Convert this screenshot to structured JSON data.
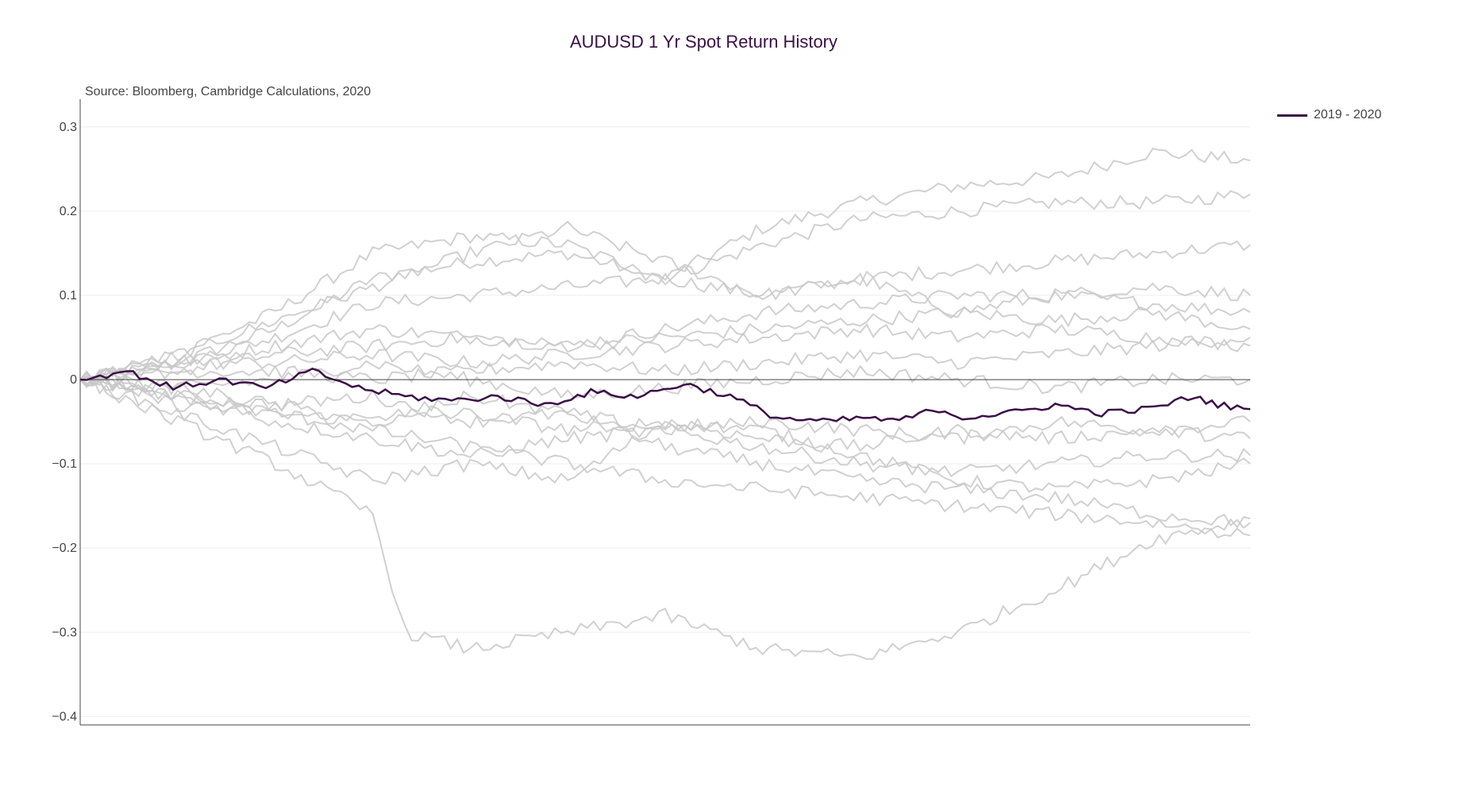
{
  "chart_data": {
    "type": "line",
    "title": "AUDUSD 1 Yr Spot Return History",
    "subtitle": "Source: Bloomberg, Cambridge Calculations, 2020",
    "xlabel": "",
    "ylabel": "",
    "ylim": [
      -0.41,
      0.33
    ],
    "yticks": [
      {
        "value": 0.3,
        "label": "0.3"
      },
      {
        "value": 0.2,
        "label": "0.2"
      },
      {
        "value": 0.1,
        "label": "0.1"
      },
      {
        "value": 0,
        "label": "0"
      },
      {
        "value": -0.1,
        "label": "−0.1"
      },
      {
        "value": -0.2,
        "label": "−0.2"
      },
      {
        "value": -0.3,
        "label": "−0.3"
      },
      {
        "value": -0.4,
        "label": "−0.4"
      }
    ],
    "x_start": 0,
    "x_end": 252,
    "grid": true,
    "legend_position": "top-right",
    "highlight_color": "#3b0f46",
    "history_color": "#c8c8c8",
    "series": [
      {
        "name": "2019 - 2020",
        "highlight": true,
        "x": [
          0,
          10,
          20,
          30,
          40,
          50,
          60,
          70,
          80,
          90,
          100,
          110,
          120,
          130,
          140,
          150,
          160,
          170,
          175,
          185,
          190,
          200,
          210,
          220,
          230,
          240,
          245,
          252
        ],
        "values": [
          0,
          0.01,
          -0.01,
          0.0,
          -0.01,
          0.01,
          -0.01,
          -0.02,
          -0.025,
          -0.02,
          -0.03,
          -0.015,
          -0.02,
          -0.005,
          -0.02,
          -0.045,
          -0.05,
          -0.045,
          -0.05,
          -0.035,
          -0.045,
          -0.04,
          -0.03,
          -0.04,
          -0.035,
          -0.02,
          -0.03,
          -0.035
        ]
      },
      {
        "name": "",
        "x": [
          0,
          21,
          42,
          63,
          84,
          105,
          126,
          147,
          168,
          189,
          210,
          231,
          252
        ],
        "values": [
          0,
          0.02,
          0.06,
          0.12,
          0.14,
          0.15,
          0.12,
          0.18,
          0.21,
          0.23,
          0.24,
          0.27,
          0.26
        ]
      },
      {
        "name": "",
        "x": [
          0,
          21,
          42,
          63,
          84,
          105,
          126,
          147,
          168,
          189,
          210,
          231,
          252
        ],
        "values": [
          0,
          0.03,
          0.08,
          0.15,
          0.17,
          0.16,
          0.12,
          0.16,
          0.19,
          0.2,
          0.21,
          0.21,
          0.22
        ]
      },
      {
        "name": "",
        "x": [
          0,
          21,
          42,
          63,
          84,
          105,
          126,
          147,
          168,
          189,
          210,
          231,
          252
        ],
        "values": [
          0,
          0.02,
          0.05,
          0.09,
          0.1,
          0.11,
          0.12,
          0.1,
          0.12,
          0.13,
          0.14,
          0.15,
          0.16
        ]
      },
      {
        "name": "",
        "x": [
          0,
          21,
          42,
          63,
          84,
          105,
          126,
          147,
          168,
          189,
          210,
          231,
          252
        ],
        "values": [
          0,
          0.03,
          0.07,
          0.11,
          0.15,
          0.18,
          0.14,
          0.1,
          0.12,
          0.08,
          0.1,
          0.09,
          0.08
        ]
      },
      {
        "name": "",
        "x": [
          0,
          21,
          42,
          63,
          84,
          105,
          126,
          147,
          168,
          189,
          210,
          231,
          252
        ],
        "values": [
          0,
          0.02,
          0.04,
          0.06,
          0.05,
          0.04,
          0.06,
          0.08,
          0.09,
          0.1,
          0.1,
          0.11,
          0.1
        ]
      },
      {
        "name": "",
        "x": [
          0,
          21,
          42,
          63,
          84,
          105,
          126,
          147,
          168,
          189,
          210,
          231,
          252
        ],
        "values": [
          0,
          0.01,
          0.03,
          0.04,
          0.05,
          0.04,
          0.05,
          0.06,
          0.07,
          0.08,
          0.07,
          0.08,
          0.06
        ]
      },
      {
        "name": "",
        "x": [
          0,
          21,
          42,
          63,
          84,
          105,
          126,
          147,
          168,
          189,
          210,
          231,
          252
        ],
        "values": [
          0,
          0.02,
          0.02,
          0.03,
          0.02,
          0.03,
          0.04,
          0.05,
          0.06,
          0.05,
          0.06,
          0.05,
          0.04
        ]
      },
      {
        "name": "",
        "x": [
          0,
          21,
          42,
          63,
          84,
          105,
          126,
          147,
          168,
          189,
          210,
          231,
          252
        ],
        "values": [
          0,
          0.01,
          0.01,
          0.0,
          0.01,
          0.02,
          0.01,
          0.02,
          0.03,
          0.02,
          0.03,
          0.04,
          0.05
        ]
      },
      {
        "name": "",
        "x": [
          0,
          21,
          42,
          63,
          84,
          105,
          126,
          147,
          168,
          189,
          210,
          231,
          252
        ],
        "values": [
          0,
          -0.01,
          0.0,
          0.02,
          0.0,
          -0.02,
          -0.01,
          0.0,
          0.01,
          0.0,
          -0.01,
          0.0,
          0.0
        ]
      },
      {
        "name": "",
        "x": [
          0,
          21,
          42,
          63,
          84,
          105,
          126,
          147,
          168,
          189,
          210,
          231,
          252
        ],
        "values": [
          0,
          -0.02,
          -0.03,
          -0.02,
          -0.05,
          -0.04,
          -0.06,
          -0.05,
          -0.06,
          -0.07,
          -0.05,
          -0.06,
          -0.05
        ]
      },
      {
        "name": "",
        "x": [
          0,
          21,
          42,
          63,
          84,
          105,
          126,
          147,
          168,
          189,
          210,
          231,
          252
        ],
        "values": [
          0,
          -0.03,
          -0.04,
          -0.05,
          -0.04,
          -0.06,
          -0.05,
          -0.07,
          -0.08,
          -0.06,
          -0.07,
          -0.06,
          -0.07
        ]
      },
      {
        "name": "",
        "x": [
          0,
          21,
          42,
          63,
          84,
          105,
          126,
          147,
          168,
          189,
          210,
          231,
          252
        ],
        "values": [
          0,
          -0.02,
          -0.05,
          -0.07,
          -0.09,
          -0.07,
          -0.06,
          -0.08,
          -0.1,
          -0.11,
          -0.1,
          -0.09,
          -0.09
        ]
      },
      {
        "name": "",
        "x": [
          0,
          21,
          42,
          63,
          84,
          105,
          126,
          147,
          168,
          189,
          210,
          231,
          252
        ],
        "values": [
          0,
          -0.04,
          -0.08,
          -0.12,
          -0.1,
          -0.12,
          -0.05,
          -0.06,
          -0.09,
          -0.12,
          -0.13,
          -0.12,
          -0.1
        ]
      },
      {
        "name": "",
        "x": [
          0,
          21,
          42,
          63,
          84,
          105,
          126,
          147,
          168,
          189,
          210,
          231,
          252
        ],
        "values": [
          0,
          -0.01,
          -0.03,
          -0.05,
          -0.02,
          -0.04,
          -0.08,
          -0.1,
          -0.12,
          -0.13,
          -0.14,
          -0.16,
          -0.17
        ]
      },
      {
        "name": "",
        "x": [
          0,
          21,
          42,
          63,
          84,
          105,
          126,
          147,
          168,
          189,
          210,
          231,
          252
        ],
        "values": [
          0,
          -0.02,
          -0.04,
          -0.06,
          -0.08,
          -0.1,
          -0.12,
          -0.13,
          -0.14,
          -0.15,
          -0.16,
          -0.17,
          -0.185
        ]
      },
      {
        "name": "",
        "x": [
          0,
          21,
          42,
          63,
          70,
          84,
          105,
          126,
          147,
          168,
          189,
          210,
          231,
          252
        ],
        "values": [
          0,
          -0.05,
          -0.1,
          -0.16,
          -0.3,
          -0.32,
          -0.3,
          -0.28,
          -0.32,
          -0.33,
          -0.3,
          -0.25,
          -0.19,
          -0.165
        ]
      }
    ]
  }
}
